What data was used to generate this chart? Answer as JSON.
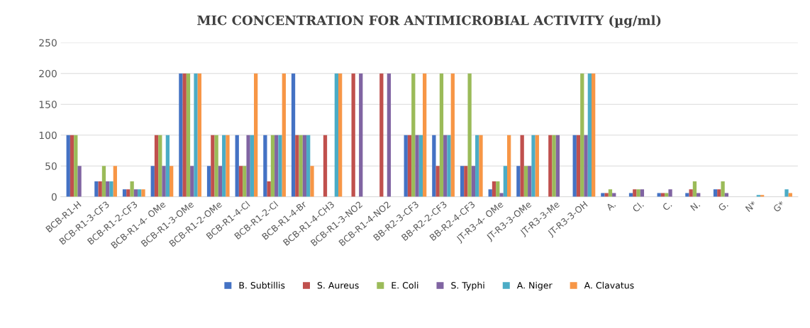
{
  "chart_data": {
    "type": "bar",
    "title": "MIC CONCENTRATION FOR ANTIMICROBIAL ACTIVITY (µg/ml)",
    "categories": [
      "BCB-R1-H",
      "BCB-R1-3-CF3",
      "BCB-R1-2-CF3",
      "BCB-R1-4- OMe",
      "BCB-R1-3-OMe",
      "BCB-R1-2-OMe",
      "BCB-R1-4-Cl",
      "BCB-R1-2-Cl",
      "BCB-R1-4-Br",
      "BCB-R1-4-CH3",
      "BCB-R1-3-NO2",
      "BCB-R1-4-NO2",
      "BB-R2-3-CF3",
      "BB-R2-2-CF3",
      "BB-R2-4-CF3",
      "JT-R3-4- OMe",
      "JT-R3-3-OMe",
      "JT-R3-3-Me",
      "JT-R3-3-OH",
      "A.",
      "Cl.",
      "C.",
      "N.",
      "G.",
      "N*",
      "G*"
    ],
    "series": [
      {
        "name": "B. Subtillis",
        "color": "#4472c4",
        "values": [
          100,
          25,
          12,
          50,
          200,
          50,
          100,
          100,
          200,
          null,
          null,
          null,
          100,
          100,
          50,
          12,
          50,
          null,
          100,
          6,
          6,
          6,
          6,
          12,
          null,
          null
        ]
      },
      {
        "name": "S. Aureus",
        "color": "#c0504d",
        "values": [
          100,
          25,
          12,
          100,
          200,
          100,
          50,
          25,
          100,
          100,
          200,
          200,
          100,
          50,
          50,
          25,
          100,
          100,
          100,
          6,
          12,
          6,
          12,
          12,
          null,
          null
        ]
      },
      {
        "name": "E. Coli",
        "color": "#9bbb59",
        "values": [
          100,
          50,
          25,
          100,
          200,
          100,
          50,
          100,
          100,
          null,
          null,
          null,
          200,
          200,
          200,
          25,
          50,
          100,
          200,
          12,
          12,
          6,
          25,
          25,
          null,
          null
        ]
      },
      {
        "name": "S. Typhi",
        "color": "#8064a2",
        "values": [
          50,
          25,
          12,
          50,
          50,
          50,
          100,
          100,
          100,
          null,
          200,
          200,
          100,
          100,
          50,
          6,
          50,
          100,
          100,
          6,
          12,
          12,
          6,
          6,
          null,
          null
        ]
      },
      {
        "name": "A. Niger",
        "color": "#4bacc6",
        "values": [
          null,
          25,
          12,
          100,
          200,
          100,
          100,
          100,
          100,
          200,
          null,
          null,
          100,
          100,
          100,
          50,
          100,
          null,
          200,
          null,
          null,
          null,
          null,
          null,
          3,
          12
        ]
      },
      {
        "name": "A. Clavatus",
        "color": "#f79646",
        "values": [
          null,
          50,
          12,
          50,
          200,
          100,
          200,
          200,
          50,
          200,
          null,
          null,
          200,
          200,
          100,
          100,
          100,
          null,
          200,
          null,
          null,
          null,
          null,
          null,
          3,
          6
        ]
      }
    ],
    "ylim": [
      0,
      250
    ],
    "yticks": [
      0,
      50,
      100,
      150,
      200,
      250
    ],
    "grid": "y",
    "legend": "bottom"
  }
}
